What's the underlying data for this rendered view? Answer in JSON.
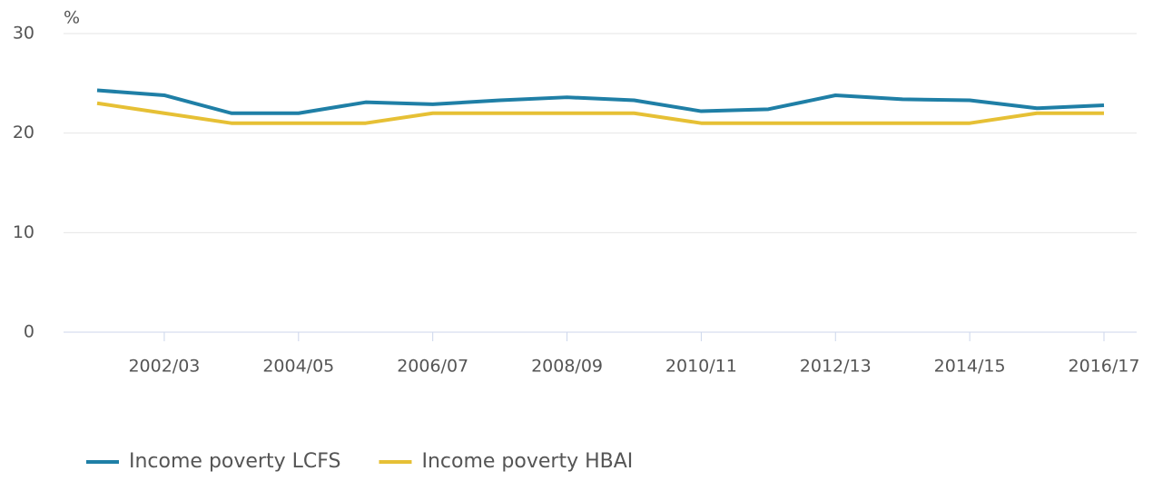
{
  "chart_data": {
    "type": "line",
    "y_label": "%",
    "categories": [
      null,
      "2002/03",
      null,
      "2004/05",
      null,
      "2006/07",
      null,
      "2008/09",
      null,
      "2010/11",
      null,
      "2012/13",
      null,
      "2014/15",
      null,
      "2016/17"
    ],
    "series": [
      {
        "name": "Income poverty LCFS",
        "color": "#1f7fa6",
        "values": [
          24.3,
          23.8,
          22.0,
          22.0,
          23.1,
          22.9,
          23.3,
          23.6,
          23.3,
          22.2,
          22.4,
          23.8,
          23.4,
          23.3,
          22.5,
          22.8
        ]
      },
      {
        "name": "Income poverty HBAI",
        "color": "#e6c035",
        "values": [
          23,
          22,
          21,
          21,
          21,
          22,
          22,
          22,
          22,
          21,
          21,
          21,
          21,
          21,
          22,
          22
        ]
      }
    ],
    "ylim": [
      0,
      30
    ],
    "yticks": [
      0,
      10,
      20,
      30
    ],
    "grid": true,
    "legend": "bottom-left"
  }
}
